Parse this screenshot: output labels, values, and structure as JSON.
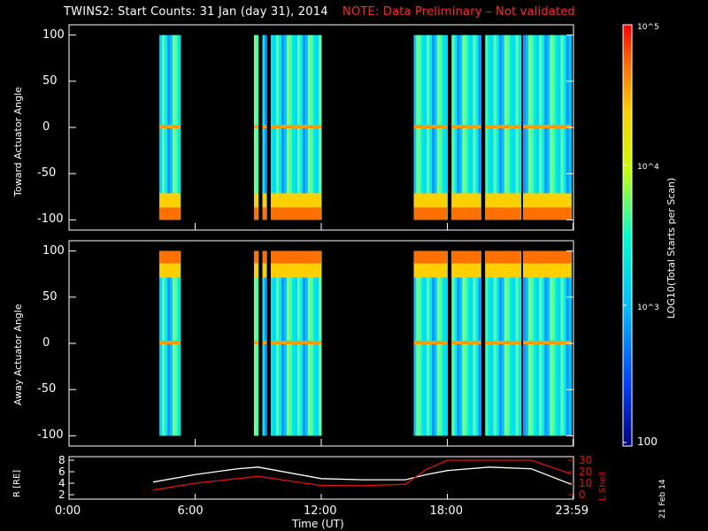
{
  "header": {
    "title": "TWINS2: Start Counts: 31 Jan (day  31), 2014",
    "note": "NOTE: Data Preliminary – Not validated"
  },
  "stamp": "21 Feb 14",
  "x_axis": {
    "label": "Time (UT)",
    "ticks": [
      "0:00",
      "6:00",
      "12:00",
      "18:00",
      "23:59"
    ]
  },
  "panel_top": {
    "ylabel": "Toward Actuator Angle",
    "yticks": [
      "100",
      "50",
      "0",
      "-50",
      "-100"
    ]
  },
  "panel_bottom": {
    "ylabel": "Away Actuator Angle",
    "yticks": [
      "100",
      "50",
      "0",
      "-50",
      "-100"
    ]
  },
  "panel_orbit": {
    "left_label": "R [RE]",
    "right_label": "L Shell",
    "left_ticks": [
      "8",
      "6",
      "4",
      "2"
    ],
    "right_ticks": [
      "30",
      "20",
      "10",
      "0"
    ],
    "colors": {
      "r": "#ffffff",
      "l": "#e01010"
    }
  },
  "colorbar": {
    "label": "LOG10(Total Starts per Scan)",
    "ticks": [
      "10^5",
      "10^4",
      "10^3",
      "100"
    ]
  },
  "chart_data": {
    "type": "heatmap",
    "x_range_hours": [
      0,
      24
    ],
    "y_range": [
      -100,
      100
    ],
    "color_range_log10": [
      2,
      5
    ],
    "data_intervals_hours": [
      [
        4.3,
        5.3
      ],
      [
        8.8,
        9.0
      ],
      [
        9.2,
        9.4
      ],
      [
        9.6,
        12.0
      ],
      [
        16.4,
        18.0
      ],
      [
        18.2,
        19.6
      ],
      [
        19.8,
        21.5
      ],
      [
        21.6,
        23.9
      ]
    ],
    "orbit": {
      "t": [
        4,
        6,
        8,
        9,
        12,
        14,
        16,
        17,
        18,
        20,
        22,
        23.9
      ],
      "r": [
        4.2,
        5.5,
        6.5,
        6.8,
        4.8,
        4.6,
        4.6,
        5.5,
        6.2,
        6.8,
        6.5,
        3.8
      ],
      "l_shell": [
        4,
        10,
        14,
        16,
        8,
        8,
        9,
        22,
        30,
        30,
        30,
        18
      ]
    }
  }
}
